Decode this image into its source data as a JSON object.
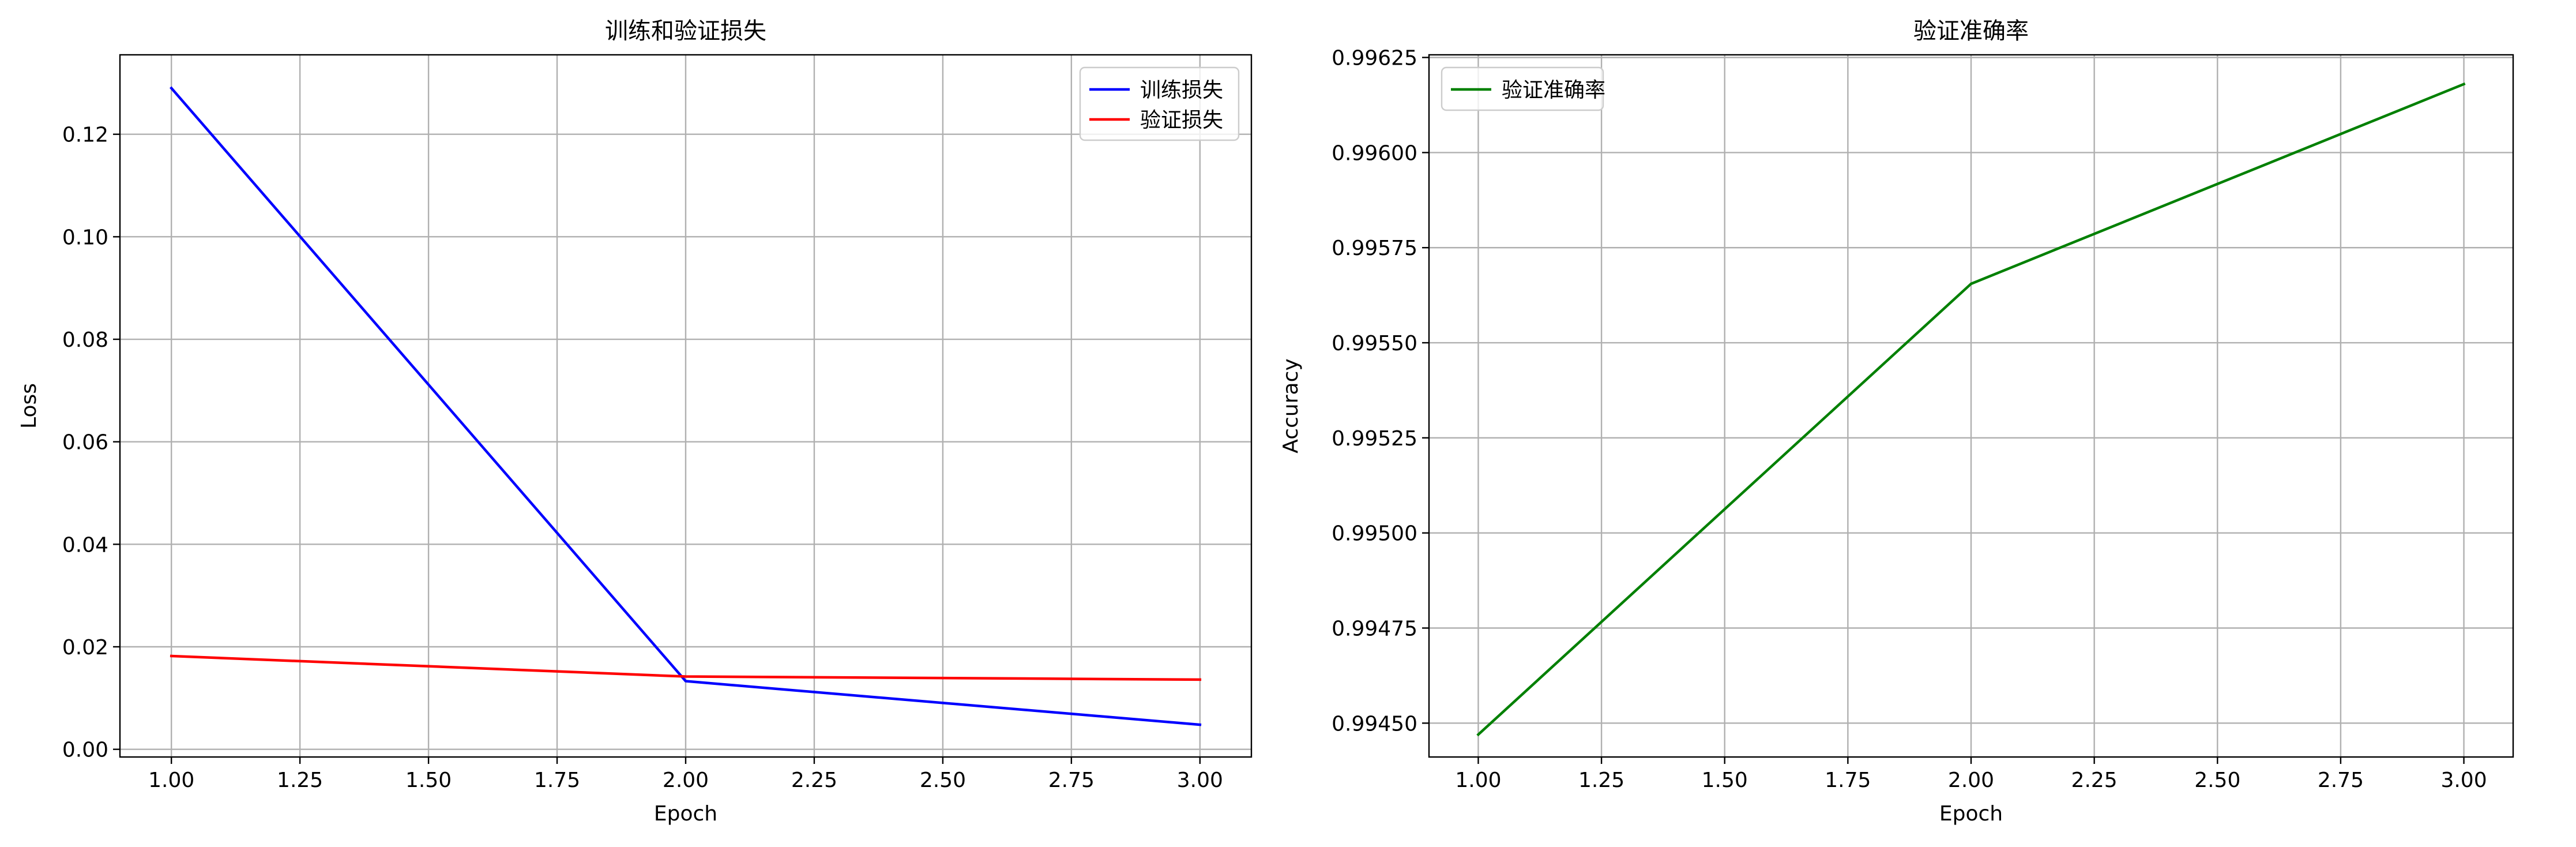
{
  "chart_data": [
    {
      "type": "line",
      "title": "训练和验证损失",
      "xlabel": "Epoch",
      "ylabel": "Loss",
      "x": [
        1,
        2,
        3
      ],
      "xlim": [
        0.9,
        3.1
      ],
      "ylim": [
        -0.0015,
        0.1355
      ],
      "xticks": [
        "1.00",
        "1.25",
        "1.50",
        "1.75",
        "2.00",
        "2.25",
        "2.50",
        "2.75",
        "3.00"
      ],
      "yticks": [
        "0.00",
        "0.02",
        "0.04",
        "0.06",
        "0.08",
        "0.10",
        "0.12"
      ],
      "grid": true,
      "legend_position": "top-right",
      "series": [
        {
          "name": "训练损失",
          "color": "#0000ff",
          "values": [
            0.129,
            0.0133,
            0.0048
          ]
        },
        {
          "name": "验证损失",
          "color": "#ff0000",
          "values": [
            0.0182,
            0.0142,
            0.0136
          ]
        }
      ]
    },
    {
      "type": "line",
      "title": "验证准确率",
      "xlabel": "Epoch",
      "ylabel": "Accuracy",
      "x": [
        1,
        2,
        3
      ],
      "xlim": [
        0.9,
        3.1
      ],
      "ylim": [
        0.994411,
        0.996257
      ],
      "xticks": [
        "1.00",
        "1.25",
        "1.50",
        "1.75",
        "2.00",
        "2.25",
        "2.50",
        "2.75",
        "3.00"
      ],
      "yticks": [
        "0.99450",
        "0.99475",
        "0.99500",
        "0.99525",
        "0.99550",
        "0.99575",
        "0.99600",
        "0.99625"
      ],
      "grid": true,
      "legend_position": "top-left",
      "series": [
        {
          "name": "验证准确率",
          "color": "#008000",
          "values": [
            0.99447,
            0.995655,
            0.99618
          ]
        }
      ]
    }
  ]
}
